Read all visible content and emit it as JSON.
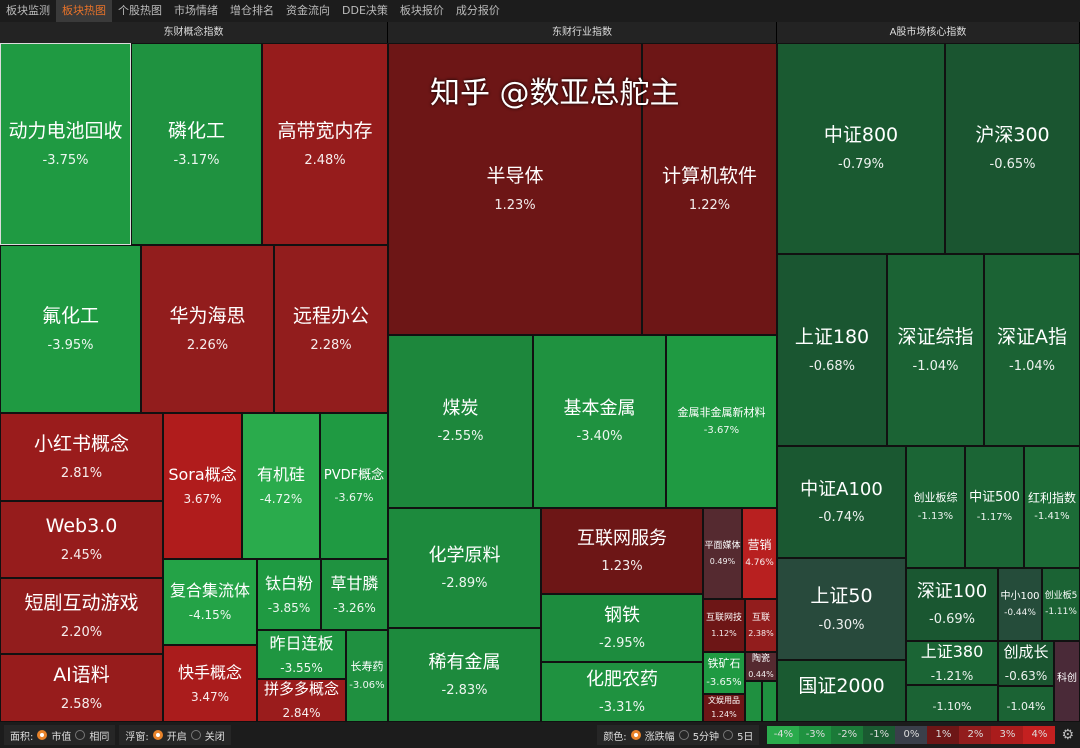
{
  "nav": {
    "tabs": [
      "板块监测",
      "板块热图",
      "个股热图",
      "市场情绪",
      "增仓排名",
      "资金流向",
      "DDE决策",
      "板块报价",
      "成分报价"
    ],
    "active": 1
  },
  "panels": [
    "东财概念指数",
    "东财行业指数",
    "A股市场核心指数"
  ],
  "tiles": [
    {
      "name": "动力电池回收",
      "value": "-3.75%",
      "color": "#1f9a42"
    },
    {
      "name": "磷化工",
      "value": "-3.17%",
      "color": "#1f9240"
    },
    {
      "name": "高带宽内存",
      "value": "2.48%",
      "color": "#961c1c"
    },
    {
      "name": "氟化工",
      "value": "-3.95%",
      "color": "#1f9a42"
    },
    {
      "name": "华为海思",
      "value": "2.26%",
      "color": "#921d1d"
    },
    {
      "name": "远程办公",
      "value": "2.28%",
      "color": "#921d1d"
    },
    {
      "name": "小红书概念",
      "value": "2.81%",
      "color": "#9a1c1c"
    },
    {
      "name": "Web3.0",
      "value": "2.45%",
      "color": "#961c1c"
    },
    {
      "name": "短剧互动游戏",
      "value": "2.20%",
      "color": "#921d1d"
    },
    {
      "name": "AI语料",
      "value": "2.58%",
      "color": "#971c1c"
    },
    {
      "name": "Sora概念",
      "value": "3.67%",
      "color": "#b01c1c"
    },
    {
      "name": "有机硅",
      "value": "-4.72%",
      "color": "#2aab4c"
    },
    {
      "name": "PVDF概念",
      "value": "-3.67%",
      "color": "#1f9a42"
    },
    {
      "name": "复合集流体",
      "value": "-4.15%",
      "color": "#24a347"
    },
    {
      "name": "钛白粉",
      "value": "-3.85%",
      "color": "#1f9a42"
    },
    {
      "name": "草甘膦",
      "value": "-3.26%",
      "color": "#1f9240"
    },
    {
      "name": "快手概念",
      "value": "3.47%",
      "color": "#aa1c1c"
    },
    {
      "name": "昨日连板",
      "value": "-3.55%",
      "color": "#1f9641"
    },
    {
      "name": "拼多多概念",
      "value": "2.84%",
      "color": "#9a1c1c"
    },
    {
      "name": "长寿药",
      "value": "-3.06%",
      "color": "#1f9040"
    },
    {
      "name": "半导体",
      "value": "1.23%",
      "color": "#6d1616"
    },
    {
      "name": "计算机软件",
      "value": "1.22%",
      "color": "#6d1616"
    },
    {
      "name": "煤炭",
      "value": "-2.55%",
      "color": "#1d873c"
    },
    {
      "name": "基本金属",
      "value": "-3.40%",
      "color": "#1f9240"
    },
    {
      "name": "金属非金属新材料",
      "value": "-3.67%",
      "color": "#1f9a42"
    },
    {
      "name": "化学原料",
      "value": "-2.89%",
      "color": "#1d8a3d"
    },
    {
      "name": "稀有金属",
      "value": "-2.83%",
      "color": "#1d8a3d"
    },
    {
      "name": "互联网服务",
      "value": "1.23%",
      "color": "#6d1616"
    },
    {
      "name": "钢铁",
      "value": "-2.95%",
      "color": "#1d8c3e"
    },
    {
      "name": "化肥农药",
      "value": "-3.31%",
      "color": "#1f9240"
    },
    {
      "name": "平面媒体",
      "value": "0.49%",
      "color": "#552a30"
    },
    {
      "name": "营销",
      "value": "4.76%",
      "color": "#b82020"
    },
    {
      "name": "互联网技",
      "value": "1.12%",
      "color": "#6d1616"
    },
    {
      "name": "互联",
      "value": "2.38%",
      "color": "#921d1d"
    },
    {
      "name": "铁矿石",
      "value": "-3.65%",
      "color": "#1f9a42"
    },
    {
      "name": "陶瓷",
      "value": "0.44%",
      "color": "#552a30"
    },
    {
      "name": "文娱用品",
      "value": "1.24%",
      "color": "#6d1616"
    },
    {
      "name": "",
      "value": "",
      "color": "#1f9040"
    },
    {
      "name": "",
      "value": "",
      "color": "#1f9040"
    },
    {
      "name": "中证800",
      "value": "-0.79%",
      "color": "#1a5a31"
    },
    {
      "name": "沪深300",
      "value": "-0.65%",
      "color": "#1a5530"
    },
    {
      "name": "上证180",
      "value": "-0.68%",
      "color": "#1a5631"
    },
    {
      "name": "深证综指",
      "value": "-1.04%",
      "color": "#1b6334"
    },
    {
      "name": "深证A指",
      "value": "-1.04%",
      "color": "#1b6334"
    },
    {
      "name": "中证A100",
      "value": "-0.74%",
      "color": "#1a5831"
    },
    {
      "name": "创业板综",
      "value": "-1.13%",
      "color": "#1b6535"
    },
    {
      "name": "中证500",
      "value": "-1.17%",
      "color": "#1b6535"
    },
    {
      "name": "红利指数",
      "value": "-1.41%",
      "color": "#1c6c37"
    },
    {
      "name": "上证50",
      "value": "-0.30%",
      "color": "#284a3c"
    },
    {
      "name": "国证2000",
      "value": "",
      "color": "#1a5a31"
    },
    {
      "name": "深证100",
      "value": "-0.69%",
      "color": "#1a5731"
    },
    {
      "name": "上证380",
      "value": "-1.21%",
      "color": "#1b6535"
    },
    {
      "name": "中小100",
      "value": "-0.44%",
      "color": "#254c3a"
    },
    {
      "name": "创业板5",
      "value": "-1.11%",
      "color": "#1b6334"
    },
    {
      "name": "创成长",
      "value": "-0.63%",
      "color": "#1a5530"
    },
    {
      "name": "科创",
      "value": "",
      "color": "#4a2a38"
    },
    {
      "name": "",
      "value": "-1.10%",
      "color": "#1b6334"
    },
    {
      "name": "",
      "value": "-1.04%",
      "color": "#1b6334"
    }
  ],
  "bottom": {
    "area_label": "面积:",
    "area_options": [
      "市值",
      "相同"
    ],
    "area_selected": 0,
    "float_label": "浮窗:",
    "float_options": [
      "开启",
      "关闭"
    ],
    "float_selected": 0,
    "color_label": "颜色:",
    "color_options": [
      "涨跌幅",
      "5分钟",
      "5日"
    ],
    "color_selected": 0,
    "legend": [
      {
        "t": "-4%",
        "c": "#2aab4c"
      },
      {
        "t": "-3%",
        "c": "#1f9240"
      },
      {
        "t": "-2%",
        "c": "#1b7a38"
      },
      {
        "t": "-1%",
        "c": "#1a5a31"
      },
      {
        "t": "0%",
        "c": "#3a3f4a"
      },
      {
        "t": "1%",
        "c": "#6d1616"
      },
      {
        "t": "2%",
        "c": "#921d1d"
      },
      {
        "t": "3%",
        "c": "#aa1c1c"
      },
      {
        "t": "4%",
        "c": "#c42020"
      }
    ],
    "settings_icon": "gear-icon"
  },
  "watermark": "知乎 @数亚总舵主"
}
